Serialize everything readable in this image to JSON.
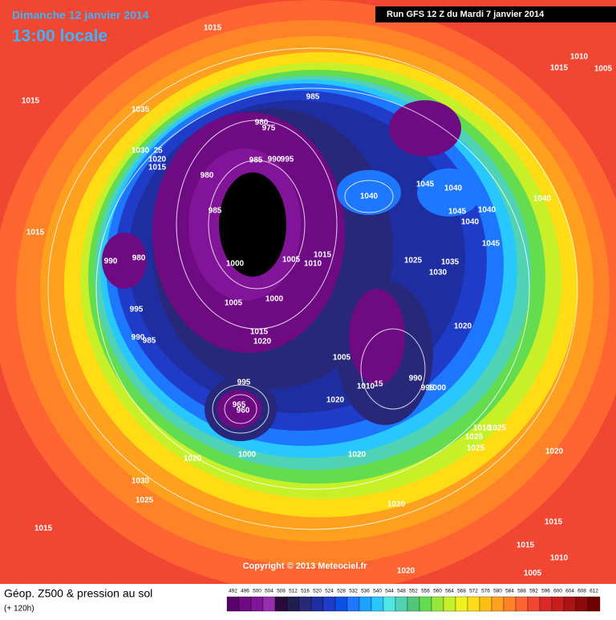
{
  "header": {
    "date": "Dimanche 12 janvier 2014",
    "time": "13:00 locale",
    "run": "Run GFS 12 Z du Mardi 7 janvier 2014"
  },
  "copyright": "Copyright © 2013 Meteociel.fr",
  "legend": {
    "title": "Géop. Z500 & pression au sol",
    "subtitle": "(+ 120h)",
    "scale": [
      {
        "label": 492,
        "color": "#5a006a"
      },
      {
        "label": 496,
        "color": "#6e0a82"
      },
      {
        "label": 500,
        "color": "#82149a"
      },
      {
        "label": 504,
        "color": "#962eae"
      },
      {
        "label": 508,
        "color": "#2a0a3a"
      },
      {
        "label": 512,
        "color": "#1e1e50"
      },
      {
        "label": 516,
        "color": "#28287a"
      },
      {
        "label": 520,
        "color": "#1e2ea0"
      },
      {
        "label": 524,
        "color": "#1e3cc8"
      },
      {
        "label": 528,
        "color": "#0a50e6"
      },
      {
        "label": 532,
        "color": "#1e78ff"
      },
      {
        "label": 536,
        "color": "#1ea0ff"
      },
      {
        "label": 540,
        "color": "#28c8ff"
      },
      {
        "label": 544,
        "color": "#50e6e6"
      },
      {
        "label": 548,
        "color": "#50d2b4"
      },
      {
        "label": 552,
        "color": "#50c878"
      },
      {
        "label": 556,
        "color": "#64dc50"
      },
      {
        "label": 560,
        "color": "#96e63c"
      },
      {
        "label": 564,
        "color": "#c8f028"
      },
      {
        "label": 568,
        "color": "#f0f01e"
      },
      {
        "label": 572,
        "color": "#ffdc14"
      },
      {
        "label": 576,
        "color": "#ffbe14"
      },
      {
        "label": 580,
        "color": "#ffa01e"
      },
      {
        "label": 584,
        "color": "#ff8228"
      },
      {
        "label": 588,
        "color": "#ff6432"
      },
      {
        "label": 592,
        "color": "#f04632"
      },
      {
        "label": 596,
        "color": "#dc2828"
      },
      {
        "label": 600,
        "color": "#c81e1e"
      },
      {
        "label": 604,
        "color": "#aa1414"
      },
      {
        "label": 608,
        "color": "#8c0a0a"
      },
      {
        "label": 612,
        "color": "#6e0000"
      }
    ]
  },
  "isobar_labels": [
    "1015",
    "1010",
    "1015",
    "1005",
    "1015",
    "1035",
    "985",
    "980",
    "975",
    "1030",
    "25",
    "1020",
    "1015",
    "985",
    "990",
    "995",
    "980",
    "1040",
    "1045",
    "1040",
    "985",
    "1045",
    "1040",
    "1040",
    "1040",
    "1015",
    "1045",
    "1015",
    "990",
    "980",
    "1000",
    "1005",
    "1010",
    "1025",
    "1035",
    "1030",
    "995",
    "1005",
    "1000",
    "1020",
    "990",
    "985",
    "1015",
    "1020",
    "1005",
    "990",
    "1010",
    "15",
    "995",
    "1000",
    "995",
    "1020",
    "965",
    "960",
    "1010",
    "1025",
    "1025",
    "1025",
    "1020",
    "1000",
    "1020",
    "1020",
    "1030",
    "1025",
    "1020",
    "1015",
    "1015",
    "1015",
    "1010",
    "1020",
    "1005"
  ]
}
